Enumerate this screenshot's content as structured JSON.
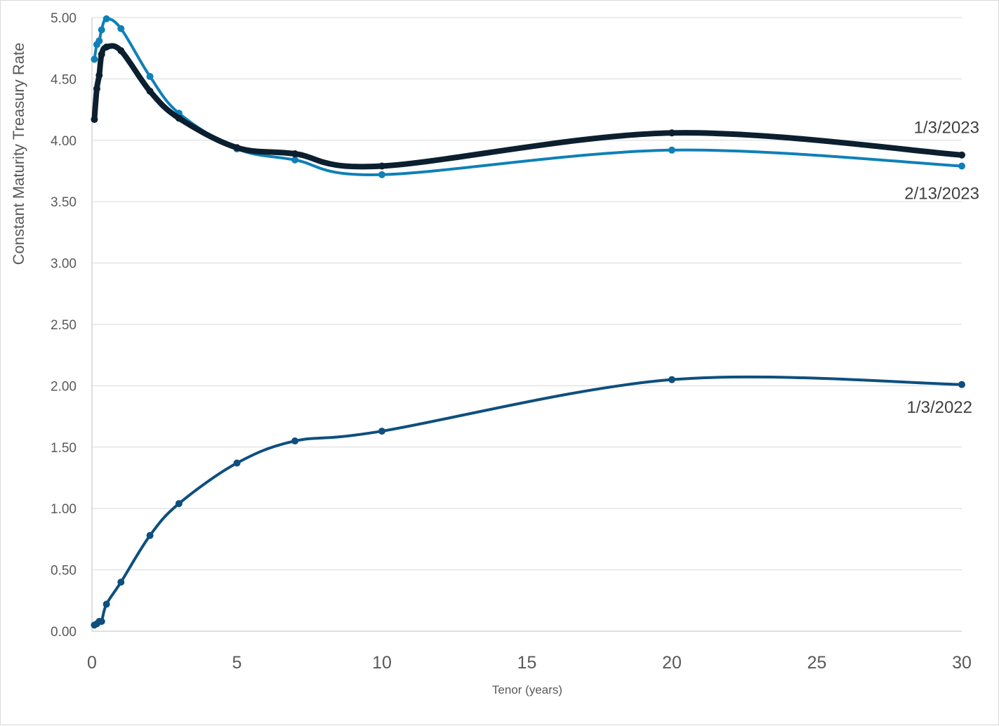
{
  "chart_data": {
    "type": "line",
    "title": "",
    "xlabel": "Tenor (years)",
    "ylabel": "Constant Maturity Treasury Rate",
    "xlim": [
      0,
      30
    ],
    "ylim": [
      0,
      5
    ],
    "x_ticks": [
      "0",
      "5",
      "10",
      "15",
      "20",
      "25",
      "30"
    ],
    "y_ticks": [
      "0.00",
      "0.50",
      "1.00",
      "1.50",
      "2.00",
      "2.50",
      "3.00",
      "3.50",
      "4.00",
      "4.50",
      "5.00"
    ],
    "grid": "horizontal",
    "x": [
      0.083,
      0.167,
      0.25,
      0.333,
      0.5,
      1,
      2,
      3,
      5,
      7,
      10,
      20,
      30
    ],
    "series": [
      {
        "name": "1/3/2022",
        "color": "#0e4f7e",
        "values": [
          0.05,
          0.06,
          0.08,
          0.08,
          0.22,
          0.4,
          0.78,
          1.04,
          1.37,
          1.55,
          1.63,
          2.05,
          2.01
        ]
      },
      {
        "name": "1/3/2023",
        "color": "#0b1f2f",
        "values": [
          4.17,
          4.42,
          4.53,
          4.7,
          4.76,
          4.73,
          4.4,
          4.18,
          3.94,
          3.89,
          3.79,
          4.06,
          3.88
        ]
      },
      {
        "name": "2/13/2023",
        "color": "#0f80b8",
        "values": [
          4.66,
          4.78,
          4.81,
          4.9,
          4.99,
          4.91,
          4.52,
          4.22,
          3.93,
          3.84,
          3.72,
          3.92,
          3.79
        ]
      }
    ]
  }
}
